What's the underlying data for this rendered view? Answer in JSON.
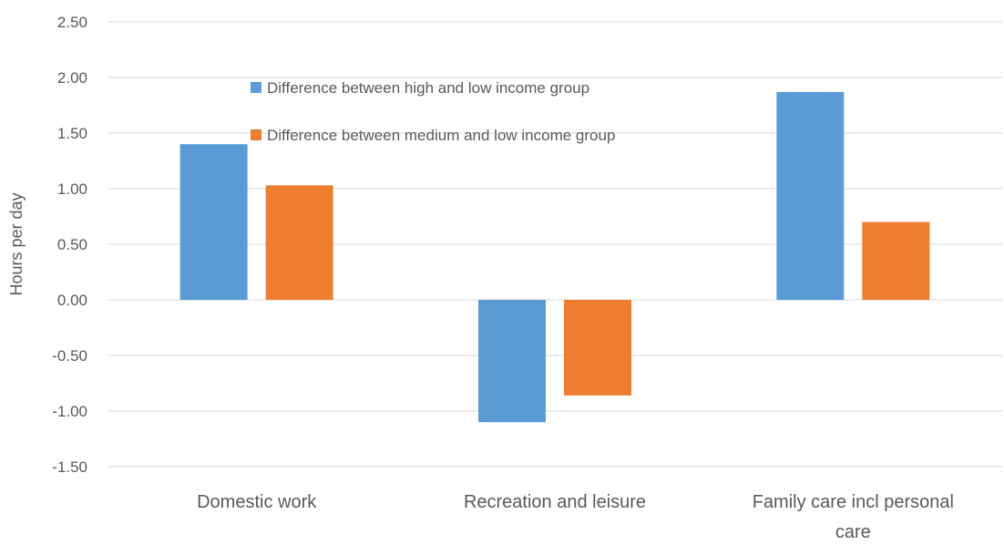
{
  "chart_data": {
    "type": "bar",
    "title": "",
    "xlabel": "",
    "ylabel": "Hours per day",
    "ylim": [
      -1.5,
      2.5
    ],
    "yticks": [
      "2.50",
      "2.00",
      "1.50",
      "1.00",
      "0.50",
      "0.00",
      "-0.50",
      "-1.00",
      "-1.50"
    ],
    "categories": [
      [
        "Domestic work"
      ],
      [
        "Recreation and leisure"
      ],
      [
        "Family care incl personal",
        "care"
      ]
    ],
    "series": [
      {
        "name": "Difference between high and low income group",
        "color": "#5B9BD5",
        "values": [
          1.4,
          -1.1,
          1.87
        ]
      },
      {
        "name": "Difference between medium and low income group",
        "color": "#ED7D31",
        "values": [
          1.03,
          -0.86,
          0.7
        ]
      }
    ],
    "grid": true,
    "legend_position": "top-center"
  }
}
